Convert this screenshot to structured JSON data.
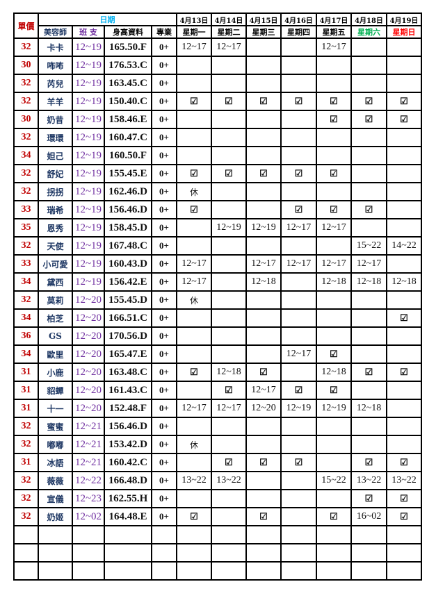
{
  "colors": {
    "price": "#c00000",
    "name": "#1f3864",
    "shift": "#7030a0",
    "date_header": "#00b0f0",
    "saturday": "#00b050",
    "sunday": "#ff0000"
  },
  "header": {
    "price": "單價",
    "date_group": "日期",
    "name": "美容師",
    "shift": "班 支",
    "height": "身高資料",
    "spec": "專業",
    "dates": [
      "4月13日",
      "4月14日",
      "4月15日",
      "4月16日",
      "4月17日",
      "4月18日",
      "4月19日"
    ],
    "weekdays": [
      "星期一",
      "星期二",
      "星期三",
      "星期四",
      "星期五",
      "星期六",
      "星期日"
    ]
  },
  "check_icon": "☑",
  "rows": [
    {
      "price": "32",
      "name": "卡卡",
      "shift": "12~19",
      "height": "165.50.F",
      "spec": "0+",
      "days": [
        "12~17",
        "12~17",
        "",
        "",
        "12~17",
        "",
        ""
      ]
    },
    {
      "price": "30",
      "name": "咘咘",
      "shift": "12~19",
      "height": "176.53.C",
      "spec": "0+",
      "days": [
        "",
        "",
        "",
        "",
        "",
        "",
        ""
      ]
    },
    {
      "price": "32",
      "name": "芮兒",
      "shift": "12~19",
      "height": "163.45.C",
      "spec": "0+",
      "days": [
        "",
        "",
        "",
        "",
        "",
        "",
        ""
      ]
    },
    {
      "price": "32",
      "name": "羊羊",
      "shift": "12~19",
      "height": "150.40.C",
      "spec": "0+",
      "days": [
        "☑",
        "☑",
        "☑",
        "☑",
        "☑",
        "☑",
        "☑"
      ]
    },
    {
      "price": "30",
      "name": "奶昔",
      "shift": "12~19",
      "height": "158.46.E",
      "spec": "0+",
      "days": [
        "",
        "",
        "",
        "",
        "☑",
        "☑",
        "☑"
      ]
    },
    {
      "price": "32",
      "name": "環環",
      "shift": "12~19",
      "height": "160.47.C",
      "spec": "0+",
      "days": [
        "",
        "",
        "",
        "",
        "",
        "",
        ""
      ]
    },
    {
      "price": "34",
      "name": "妲己",
      "shift": "12~19",
      "height": "160.50.F",
      "spec": "0+",
      "days": [
        "",
        "",
        "",
        "",
        "",
        "",
        ""
      ]
    },
    {
      "price": "32",
      "name": "舒妃",
      "shift": "12~19",
      "height": "155.45.E",
      "spec": "0+",
      "days": [
        "☑",
        "☑",
        "☑",
        "☑",
        "☑",
        "",
        ""
      ]
    },
    {
      "price": "32",
      "name": "拐拐",
      "shift": "12~19",
      "height": "162.46.D",
      "spec": "0+",
      "days": [
        "休",
        "",
        "",
        "",
        "",
        "",
        ""
      ]
    },
    {
      "price": "33",
      "name": "瑞希",
      "shift": "12~19",
      "height": "156.46.D",
      "spec": "0+",
      "days": [
        "☑",
        "",
        "",
        "☑",
        "☑",
        "☑",
        ""
      ]
    },
    {
      "price": "35",
      "name": "恩秀",
      "shift": "12~19",
      "height": "158.45.D",
      "spec": "0+",
      "days": [
        "",
        "12~19",
        "12~19",
        "12~17",
        "12~17",
        "",
        ""
      ]
    },
    {
      "price": "32",
      "name": "天使",
      "shift": "12~19",
      "height": "167.48.C",
      "spec": "0+",
      "days": [
        "",
        "",
        "",
        "",
        "",
        "15~22",
        "14~22"
      ]
    },
    {
      "price": "33",
      "name": "小可愛",
      "shift": "12~19",
      "height": "160.43.D",
      "spec": "0+",
      "days": [
        "12~17",
        "",
        "12~17",
        "12~17",
        "12~17",
        "12~17",
        ""
      ]
    },
    {
      "price": "34",
      "name": "黛西",
      "shift": "12~19",
      "height": "156.42.E",
      "spec": "0+",
      "days": [
        "12~17",
        "",
        "12~18",
        "",
        "12~18",
        "12~18",
        "12~18"
      ]
    },
    {
      "price": "32",
      "name": "莫莉",
      "shift": "12~20",
      "height": "155.45.D",
      "spec": "0+",
      "days": [
        "休",
        "",
        "",
        "",
        "",
        "",
        ""
      ]
    },
    {
      "price": "34",
      "name": "柏芝",
      "shift": "12~20",
      "height": "166.51.C",
      "spec": "0+",
      "days": [
        "",
        "",
        "",
        "",
        "",
        "",
        "☑"
      ]
    },
    {
      "price": "36",
      "name": "GS",
      "shift": "12~20",
      "height": "170.56.D",
      "spec": "0+",
      "days": [
        "",
        "",
        "",
        "",
        "",
        "",
        ""
      ]
    },
    {
      "price": "34",
      "name": "歐里",
      "shift": "12~20",
      "height": "165.47.E",
      "spec": "0+",
      "days": [
        "",
        "",
        "",
        "12~17",
        "☑",
        "",
        ""
      ]
    },
    {
      "price": "31",
      "name": "小鹿",
      "shift": "12~20",
      "height": "163.48.C",
      "spec": "0+",
      "days": [
        "☑",
        "12~18",
        "☑",
        "",
        "12~18",
        "☑",
        "☑"
      ]
    },
    {
      "price": "31",
      "name": "貂蟬",
      "shift": "12~20",
      "height": "161.43.C",
      "spec": "0+",
      "days": [
        "",
        "☑",
        "12~17",
        "☑",
        "☑",
        "",
        ""
      ]
    },
    {
      "price": "31",
      "name": "十一",
      "shift": "12~20",
      "height": "152.48.F",
      "spec": "0+",
      "days": [
        "12~17",
        "12~17",
        "12~20",
        "12~19",
        "12~19",
        "12~18",
        ""
      ]
    },
    {
      "price": "32",
      "name": "蜜蜜",
      "shift": "12~21",
      "height": "156.46.D",
      "spec": "0+",
      "days": [
        "",
        "",
        "",
        "",
        "",
        "",
        ""
      ]
    },
    {
      "price": "32",
      "name": "嘟嘟",
      "shift": "12~21",
      "height": "153.42.D",
      "spec": "0+",
      "days": [
        "休",
        "",
        "",
        "",
        "",
        "",
        ""
      ]
    },
    {
      "price": "31",
      "name": "冰語",
      "shift": "12~21",
      "height": "160.42.C",
      "spec": "0+",
      "days": [
        "",
        "☑",
        "☑",
        "☑",
        "",
        "☑",
        "☑"
      ]
    },
    {
      "price": "32",
      "name": "薇薇",
      "shift": "12~22",
      "height": "166.48.D",
      "spec": "0+",
      "days": [
        "13~22",
        "13~22",
        "",
        "",
        "15~22",
        "13~22",
        "13~22"
      ]
    },
    {
      "price": "32",
      "name": "宣儀",
      "shift": "12~23",
      "height": "162.55.H",
      "spec": "0+",
      "days": [
        "",
        "",
        "",
        "",
        "",
        "☑",
        "☑"
      ]
    },
    {
      "price": "32",
      "name": "奶姬",
      "shift": "12~02",
      "height": "164.48.E",
      "spec": "0+",
      "days": [
        "☑",
        "",
        "☑",
        "",
        "☑",
        "16~02",
        "☑"
      ]
    }
  ],
  "empty_rows": 3
}
